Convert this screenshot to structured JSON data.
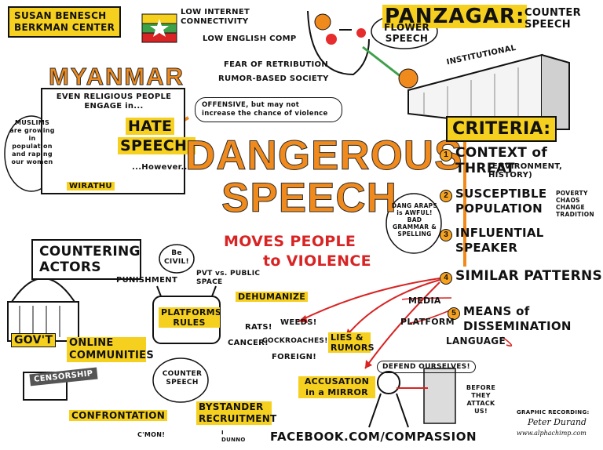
{
  "credits": {
    "name": "SUSAN BENESCH",
    "org": "BERKMAN CENTER"
  },
  "myanmar": {
    "title": "MYANMAR",
    "conditions": [
      "LOW INTERNET CONNECTIVITY",
      "LOW ENGLISH COMP",
      "FEAR OF RETRIBUTION",
      "RUMOR-BASED SOCIETY"
    ],
    "quote_intro": "EVEN RELIGIOUS PEOPLE ENGAGE in...",
    "hate": "HATE",
    "speech": "SPEECH,",
    "however": "...However...",
    "muslims_note": "MUSLIMS are growing in population and raping our women",
    "monk_label": "WIRATHU",
    "offensive_note": "OFFENSIVE, but may not increase the chance of violence"
  },
  "panzagar": {
    "title": "PANZAGAR:",
    "subtitle": "COUNTER SPEECH",
    "bubble": "FLOWER SPEECH",
    "institutional": "INSTITUTIONAL"
  },
  "main": {
    "line1": "DANGEROUS",
    "line2": "SPEECH",
    "sub1": "MOVES PEOPLE",
    "sub2": "to VIOLENCE"
  },
  "criteria": {
    "title": "CRITERIA:",
    "items": [
      {
        "num": "1",
        "label": "CONTEXT of THREAT",
        "sub": "(ENVIRONMENT, HISTORY)"
      },
      {
        "num": "2",
        "label": "SUSCEPTIBLE POPULATION",
        "sub": "POVERTY CHAOS CHANGE TRADITION"
      },
      {
        "num": "3",
        "label": "INFLUENTIAL SPEAKER",
        "sub": ""
      },
      {
        "num": "4",
        "label": "SIMILAR PATTERNS",
        "sub": ""
      },
      {
        "num": "5",
        "label": "MEANS of DISSEMINATION",
        "sub": ""
      }
    ],
    "dang_note": "DANG ARAPS is AWFUL! BAD GRAMMAR & SPELLING",
    "media": "MEDIA",
    "platform": "PLATFORM",
    "language": "LANGUAGE"
  },
  "patterns": {
    "dehumanize": "DEHUMANIZE",
    "words": [
      "RATS!",
      "WEEDS!",
      "CANCER!",
      "COCKROACHES!",
      "FOREIGN!"
    ],
    "lies": "LIES & RUMORS",
    "accusation": "ACCUSATION in a MIRROR",
    "defend": "DEFEND OURSELVES!",
    "before": "BEFORE THEY ATTACK US!"
  },
  "countering": {
    "title": "COUNTERING ACTORS",
    "punishment": "PUNISHMENT",
    "be_civil": "Be CIVIL!",
    "pvt": "PVT vs. PUBLIC SPACE",
    "platform_rules": "PLATFORMS RULES",
    "govt": "GOV'T",
    "online": "ONLINE COMMUNITIES",
    "censorship": "CENSORSHIP",
    "counter_speech": "COUNTER SPEECH",
    "confrontation": "CONFRONTATION",
    "bystander": "BYSTANDER RECRUITMENT",
    "cmon": "C'MON!",
    "idunno": "I DUNNO"
  },
  "footer": {
    "url": "FACEBOOK.COM/COMPASSION",
    "credit_label": "GRAPHIC RECORDING:",
    "credit_name": "Peter Durand",
    "credit_site": "www.alphachimp.com"
  },
  "colors": {
    "accent_orange": "#f08a1c",
    "highlight_yellow": "#f6d01f",
    "red": "#d82424"
  }
}
